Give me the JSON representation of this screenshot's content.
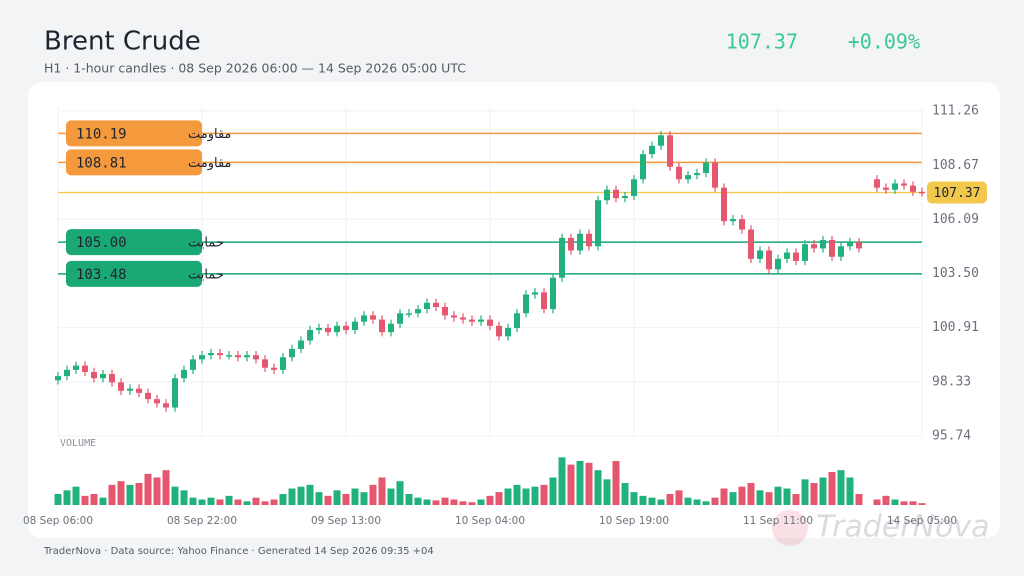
{
  "chart_data": {
    "type": "candlestick",
    "title": "Brent Crude",
    "subtitle": "H1 · 1-hour candles · 08 Sep 2026 06:00 — 14 Sep 2026 05:00 UTC",
    "price": 107.37,
    "change": "+0.09%",
    "volume_label": "VOLUME",
    "footer": "TraderNova · Data source: Yahoo Finance · Generated 14 Sep 2026 09:35 +04",
    "watermark": "TraderNova",
    "up_color": "#22b07d",
    "down_color": "#e5566f",
    "last_color": "#f2c94c",
    "grid": true,
    "ylim": [
      95.74,
      111.5
    ],
    "yticks": [
      95.74,
      98.33,
      100.91,
      {
        "value": 103.5,
        "label": "103.50"
      },
      106.09,
      108.67,
      111.26
    ],
    "vlim": [
      0,
      60
    ],
    "levels": [
      {
        "price": 110.19,
        "text": "مقاومت",
        "color": "#f59a3c"
      },
      {
        "price": 108.81,
        "text": "مقاومت",
        "color": "#f59a3c"
      },
      {
        "price": 105,
        "price_label": "105.00",
        "text": "حمایت",
        "color": "#1aa874"
      },
      {
        "price": 103.48,
        "text": "حمایت",
        "color": "#1aa874"
      }
    ],
    "categories": [
      "08 Sep 06:00",
      null,
      null,
      null,
      null,
      null,
      null,
      null,
      null,
      null,
      null,
      null,
      null,
      null,
      null,
      null,
      "08 Sep 22:00",
      null,
      null,
      null,
      null,
      null,
      null,
      null,
      null,
      null,
      null,
      null,
      null,
      null,
      null,
      null,
      "09 Sep 13:00",
      null,
      null,
      null,
      null,
      null,
      null,
      null,
      null,
      null,
      null,
      null,
      null,
      null,
      null,
      null,
      "10 Sep 04:00",
      null,
      null,
      null,
      null,
      null,
      null,
      null,
      null,
      null,
      null,
      null,
      null,
      null,
      null,
      null,
      "10 Sep 19:00",
      null,
      null,
      null,
      null,
      null,
      null,
      null,
      null,
      null,
      null,
      null,
      null,
      null,
      null,
      null,
      "11 Sep 11:00",
      null,
      null,
      null,
      null,
      null,
      null,
      null,
      null,
      null,
      null,
      null,
      null,
      null,
      null,
      null,
      "14 Sep 05:00"
    ],
    "open": [
      98.4,
      98.6,
      98.9,
      99.1,
      98.8,
      98.5,
      98.7,
      98.3,
      97.9,
      98.0,
      97.8,
      97.5,
      97.3,
      97.1,
      98.5,
      98.9,
      99.4,
      99.6,
      99.7,
      99.6,
      99.6,
      99.5,
      99.6,
      99.4,
      99.0,
      98.9,
      99.5,
      99.9,
      100.3,
      100.8,
      100.9,
      100.7,
      101.0,
      100.8,
      101.2,
      101.5,
      101.3,
      100.7,
      101.1,
      101.6,
      101.6,
      101.8,
      102.1,
      101.9,
      101.5,
      101.4,
      101.3,
      101.2,
      101.3,
      101.0,
      100.5,
      100.9,
      101.6,
      102.5,
      102.6,
      101.8,
      103.3,
      105.2,
      104.6,
      105.4,
      104.8,
      107.0,
      107.5,
      107.1,
      107.2,
      108.0,
      109.2,
      109.6,
      110.1,
      108.6,
      108.0,
      108.2,
      108.3,
      108.8,
      107.6,
      106.0,
      106.1,
      105.6,
      104.2,
      104.6,
      103.7,
      104.2,
      104.5,
      104.1,
      104.9,
      104.7,
      105.1,
      104.3,
      104.8,
      105.0,
      null,
      108.0,
      107.6,
      107.5,
      107.8,
      107.7,
      107.4
    ],
    "high": [
      98.8,
      99.1,
      99.3,
      99.3,
      99.0,
      98.9,
      98.9,
      98.5,
      98.2,
      98.2,
      98.0,
      97.7,
      97.5,
      98.7,
      99.1,
      99.6,
      99.8,
      99.9,
      99.9,
      99.8,
      99.8,
      99.8,
      99.8,
      99.6,
      99.2,
      99.7,
      100.1,
      100.5,
      101.0,
      101.1,
      101.1,
      101.2,
      101.2,
      101.4,
      101.7,
      101.7,
      101.5,
      101.3,
      101.8,
      101.8,
      102.0,
      102.3,
      102.3,
      102.1,
      101.7,
      101.6,
      101.5,
      101.5,
      101.5,
      101.2,
      101.1,
      101.8,
      102.7,
      102.8,
      102.8,
      103.5,
      105.4,
      105.4,
      105.6,
      105.6,
      107.2,
      107.7,
      107.7,
      107.4,
      108.2,
      109.4,
      109.8,
      110.3,
      110.3,
      108.8,
      108.4,
      108.5,
      109.0,
      109.0,
      107.8,
      106.3,
      106.3,
      105.8,
      104.8,
      104.8,
      104.4,
      104.7,
      104.7,
      105.1,
      105.1,
      105.3,
      105.3,
      105.0,
      105.2,
      105.2,
      null,
      108.2,
      107.8,
      108.0,
      108.0,
      107.9,
      107.6
    ],
    "low": [
      98.2,
      98.4,
      98.7,
      98.6,
      98.3,
      98.3,
      98.1,
      97.7,
      97.7,
      97.6,
      97.3,
      97.1,
      96.9,
      96.9,
      98.3,
      98.7,
      99.2,
      99.4,
      99.4,
      99.4,
      99.3,
      99.3,
      99.2,
      98.8,
      98.7,
      98.7,
      99.3,
      99.7,
      100.1,
      100.6,
      100.5,
      100.5,
      100.6,
      100.6,
      101.0,
      101.1,
      100.5,
      100.5,
      100.9,
      101.4,
      101.4,
      101.6,
      101.7,
      101.3,
      101.2,
      101.1,
      101.0,
      101.0,
      100.8,
      100.3,
      100.3,
      100.7,
      101.4,
      102.3,
      101.6,
      101.6,
      103.1,
      104.4,
      104.4,
      104.6,
      104.6,
      106.8,
      106.9,
      106.9,
      107.0,
      107.8,
      109.0,
      109.4,
      108.4,
      107.8,
      107.8,
      108.0,
      108.1,
      107.4,
      105.8,
      105.8,
      105.4,
      104.0,
      104.0,
      103.5,
      103.5,
      104.0,
      103.9,
      103.9,
      104.5,
      104.5,
      104.1,
      104.1,
      104.6,
      104.5,
      null,
      107.4,
      107.3,
      107.3,
      107.5,
      107.2,
      107.17
    ],
    "close": [
      98.6,
      98.9,
      99.1,
      98.8,
      98.5,
      98.7,
      98.3,
      97.9,
      98.0,
      97.8,
      97.5,
      97.3,
      97.1,
      98.5,
      98.9,
      99.4,
      99.6,
      99.7,
      99.6,
      99.6,
      99.5,
      99.6,
      99.4,
      99.0,
      98.9,
      99.5,
      99.9,
      100.3,
      100.8,
      100.9,
      100.7,
      101.0,
      100.8,
      101.2,
      101.5,
      101.3,
      100.7,
      101.1,
      101.6,
      101.6,
      101.8,
      102.1,
      101.9,
      101.5,
      101.4,
      101.3,
      101.2,
      101.3,
      101.0,
      100.5,
      100.9,
      101.6,
      102.5,
      102.6,
      101.8,
      103.3,
      105.2,
      104.6,
      105.4,
      104.8,
      107.0,
      107.5,
      107.1,
      107.2,
      108.0,
      109.2,
      109.6,
      110.1,
      108.6,
      108.0,
      108.2,
      108.3,
      108.8,
      107.6,
      106.0,
      106.1,
      105.6,
      104.2,
      104.6,
      103.7,
      104.2,
      104.5,
      104.1,
      104.9,
      104.7,
      105.1,
      104.3,
      104.8,
      105.0,
      104.7,
      null,
      107.6,
      107.5,
      107.8,
      107.7,
      107.4,
      107.37
    ],
    "volume": [
      12,
      16,
      20,
      10,
      12,
      8,
      22,
      26,
      22,
      24,
      34,
      30,
      38,
      20,
      16,
      8,
      6,
      8,
      6,
      10,
      6,
      4,
      8,
      4,
      6,
      12,
      18,
      20,
      22,
      14,
      10,
      16,
      12,
      18,
      14,
      22,
      30,
      18,
      26,
      12,
      8,
      6,
      5,
      8,
      6,
      4,
      3,
      6,
      10,
      14,
      18,
      22,
      18,
      20,
      22,
      30,
      52,
      44,
      48,
      46,
      38,
      28,
      48,
      24,
      14,
      10,
      8,
      6,
      12,
      16,
      8,
      6,
      4,
      8,
      18,
      14,
      20,
      24,
      16,
      14,
      20,
      18,
      12,
      28,
      24,
      30,
      36,
      38,
      30,
      12,
      null,
      6,
      10,
      6,
      4,
      4,
      2
    ]
  }
}
